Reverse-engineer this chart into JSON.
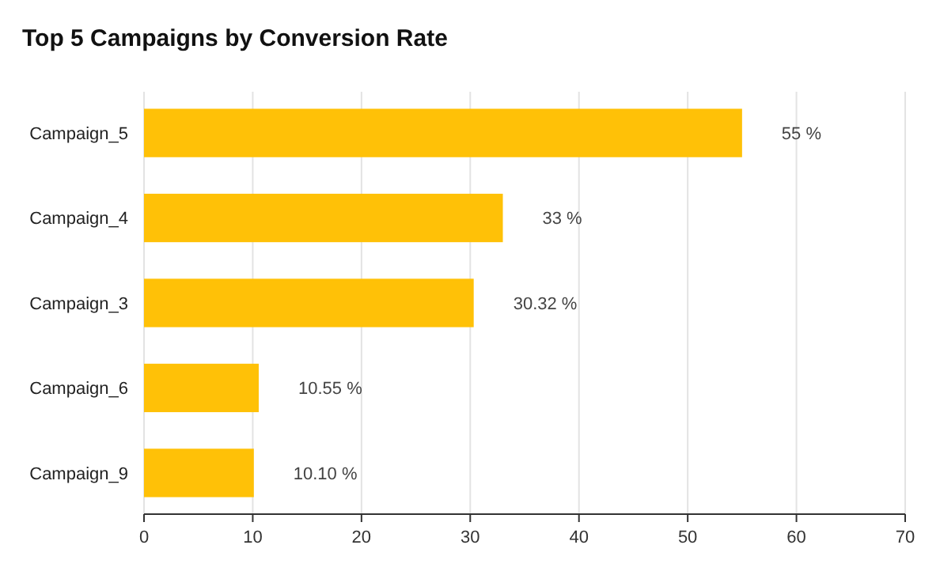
{
  "chart_data": {
    "type": "bar",
    "title": "Top 5 Campaigns by Conversion Rate",
    "orientation": "horizontal",
    "categories": [
      "Campaign_5",
      "Campaign_4",
      "Campaign_3",
      "Campaign_6",
      "Campaign_9"
    ],
    "values": [
      55,
      33,
      30.32,
      10.55,
      10.1
    ],
    "value_labels": [
      "55 %",
      "33 %",
      "30.32 %",
      "10.55 %",
      "10.10 %"
    ],
    "color": "#ffc107",
    "xlim": [
      0,
      70
    ],
    "xticks": [
      0,
      10,
      20,
      30,
      40,
      50,
      60,
      70
    ],
    "grid": "x"
  }
}
